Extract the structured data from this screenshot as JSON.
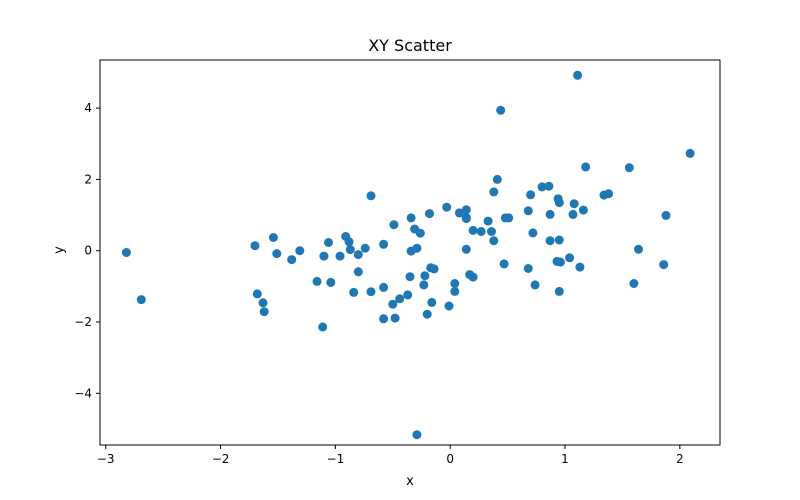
{
  "chart_data": {
    "type": "scatter",
    "title": "XY Scatter",
    "xlabel": "x",
    "ylabel": "y",
    "xlim": [
      -3.05,
      2.35
    ],
    "ylim": [
      -5.45,
      5.35
    ],
    "xticks": [
      -3,
      -2,
      -1,
      0,
      1,
      2
    ],
    "yticks": [
      -4,
      -2,
      0,
      2,
      4
    ],
    "xtick_labels": [
      "−3",
      "−2",
      "−1",
      "0",
      "1",
      "2"
    ],
    "ytick_labels": [
      "−4",
      "−2",
      "0",
      "2",
      "4"
    ],
    "grid": false,
    "legend": "none",
    "marker_color": "#1f77b4",
    "points": [
      {
        "x": -2.82,
        "y": -0.05
      },
      {
        "x": -2.69,
        "y": -1.37
      },
      {
        "x": -1.7,
        "y": 0.14
      },
      {
        "x": -1.68,
        "y": -1.21
      },
      {
        "x": -1.63,
        "y": -1.46
      },
      {
        "x": -1.62,
        "y": -1.71
      },
      {
        "x": -1.54,
        "y": 0.37
      },
      {
        "x": -1.51,
        "y": -0.08
      },
      {
        "x": -1.38,
        "y": -0.25
      },
      {
        "x": -1.31,
        "y": 0.0
      },
      {
        "x": -1.16,
        "y": -0.86
      },
      {
        "x": -1.11,
        "y": -2.14
      },
      {
        "x": -1.1,
        "y": -0.15
      },
      {
        "x": -1.06,
        "y": 0.23
      },
      {
        "x": -1.04,
        "y": -0.89
      },
      {
        "x": -0.96,
        "y": -0.15
      },
      {
        "x": -0.91,
        "y": 0.4
      },
      {
        "x": -0.88,
        "y": 0.25
      },
      {
        "x": -0.87,
        "y": 0.03
      },
      {
        "x": -0.84,
        "y": -1.17
      },
      {
        "x": -0.8,
        "y": -0.59
      },
      {
        "x": -0.8,
        "y": -0.11
      },
      {
        "x": -0.74,
        "y": 0.07
      },
      {
        "x": -0.69,
        "y": 1.54
      },
      {
        "x": -0.69,
        "y": -1.15
      },
      {
        "x": -0.58,
        "y": -1.03
      },
      {
        "x": -0.58,
        "y": 0.18
      },
      {
        "x": -0.58,
        "y": -1.91
      },
      {
        "x": -0.5,
        "y": -1.5
      },
      {
        "x": -0.49,
        "y": 0.73
      },
      {
        "x": -0.48,
        "y": -1.89
      },
      {
        "x": -0.44,
        "y": -1.35
      },
      {
        "x": -0.37,
        "y": -1.24
      },
      {
        "x": -0.35,
        "y": -0.73
      },
      {
        "x": -0.34,
        "y": 0.92
      },
      {
        "x": -0.34,
        "y": -0.01
      },
      {
        "x": -0.31,
        "y": 0.61
      },
      {
        "x": -0.29,
        "y": 0.07
      },
      {
        "x": -0.29,
        "y": -5.16
      },
      {
        "x": -0.26,
        "y": 0.49
      },
      {
        "x": -0.23,
        "y": -0.96
      },
      {
        "x": -0.22,
        "y": -0.7
      },
      {
        "x": -0.2,
        "y": -1.78
      },
      {
        "x": -0.18,
        "y": 1.04
      },
      {
        "x": -0.17,
        "y": -0.48
      },
      {
        "x": -0.16,
        "y": -1.45
      },
      {
        "x": -0.14,
        "y": -0.51
      },
      {
        "x": -0.03,
        "y": 1.22
      },
      {
        "x": -0.01,
        "y": -1.55
      },
      {
        "x": 0.04,
        "y": -0.92
      },
      {
        "x": 0.04,
        "y": -1.14
      },
      {
        "x": 0.08,
        "y": 1.06
      },
      {
        "x": 0.14,
        "y": 0.93
      },
      {
        "x": 0.14,
        "y": 1.15
      },
      {
        "x": 0.14,
        "y": 0.04
      },
      {
        "x": 0.14,
        "y": 0.9
      },
      {
        "x": 0.17,
        "y": -0.67
      },
      {
        "x": 0.2,
        "y": 0.57
      },
      {
        "x": 0.2,
        "y": -0.74
      },
      {
        "x": 0.27,
        "y": 0.54
      },
      {
        "x": 0.33,
        "y": 0.83
      },
      {
        "x": 0.36,
        "y": 0.54
      },
      {
        "x": 0.38,
        "y": 1.65
      },
      {
        "x": 0.38,
        "y": 0.28
      },
      {
        "x": 0.41,
        "y": 2.0
      },
      {
        "x": 0.44,
        "y": 3.94
      },
      {
        "x": 0.47,
        "y": -0.37
      },
      {
        "x": 0.48,
        "y": 0.92
      },
      {
        "x": 0.51,
        "y": 0.92
      },
      {
        "x": 0.68,
        "y": -0.5
      },
      {
        "x": 0.68,
        "y": 1.12
      },
      {
        "x": 0.7,
        "y": 1.57
      },
      {
        "x": 0.72,
        "y": 0.5
      },
      {
        "x": 0.74,
        "y": -0.96
      },
      {
        "x": 0.8,
        "y": 1.79
      },
      {
        "x": 0.86,
        "y": 1.81
      },
      {
        "x": 0.87,
        "y": 0.28
      },
      {
        "x": 0.87,
        "y": 1.02
      },
      {
        "x": 0.93,
        "y": -0.3
      },
      {
        "x": 0.94,
        "y": 1.46
      },
      {
        "x": 0.95,
        "y": 1.35
      },
      {
        "x": 0.95,
        "y": 0.3
      },
      {
        "x": 0.95,
        "y": -1.14
      },
      {
        "x": 0.96,
        "y": -0.32
      },
      {
        "x": 1.04,
        "y": -0.2
      },
      {
        "x": 1.07,
        "y": 1.02
      },
      {
        "x": 1.08,
        "y": 1.32
      },
      {
        "x": 1.11,
        "y": 4.92
      },
      {
        "x": 1.13,
        "y": -0.46
      },
      {
        "x": 1.16,
        "y": 1.14
      },
      {
        "x": 1.18,
        "y": 2.35
      },
      {
        "x": 1.34,
        "y": 1.56
      },
      {
        "x": 1.38,
        "y": 1.6
      },
      {
        "x": 1.56,
        "y": 2.33
      },
      {
        "x": 1.6,
        "y": -0.92
      },
      {
        "x": 1.64,
        "y": 0.04
      },
      {
        "x": 1.86,
        "y": -0.39
      },
      {
        "x": 1.88,
        "y": 0.99
      },
      {
        "x": 2.09,
        "y": 2.73
      }
    ]
  }
}
